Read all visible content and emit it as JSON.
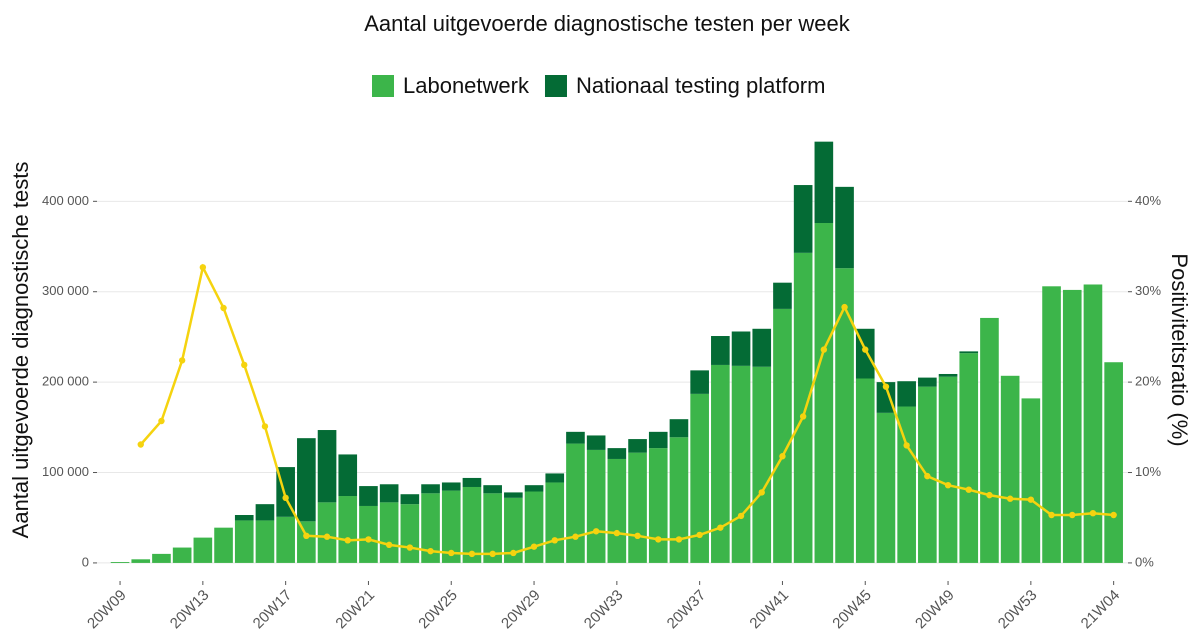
{
  "chart_data": {
    "type": "bar",
    "title": "Aantal uitgevoerde diagnostische testen per week",
    "y_label": "Aantal uitgevoerde diagnostische tests",
    "y2_label": "Positiviteitsratio (%)",
    "stacked": true,
    "grid": true,
    "legend": "top",
    "categories": [
      "20W09",
      null,
      null,
      null,
      "20W13",
      null,
      null,
      null,
      "20W17",
      null,
      null,
      null,
      "20W21",
      null,
      null,
      null,
      "20W25",
      null,
      null,
      null,
      "20W29",
      null,
      null,
      null,
      "20W33",
      null,
      null,
      null,
      "20W37",
      null,
      null,
      null,
      "20W41",
      null,
      null,
      null,
      "20W45",
      null,
      null,
      null,
      "20W49",
      null,
      null,
      null,
      "20W53",
      null,
      null,
      null,
      "21W04"
    ],
    "series": [
      {
        "name": "Labonetwerk",
        "color": "#3cb54a",
        "values": [
          1000,
          4000,
          10000,
          17000,
          28000,
          39000,
          47000,
          47000,
          51000,
          46000,
          67000,
          74000,
          63000,
          67000,
          65000,
          77000,
          80000,
          84000,
          77000,
          72000,
          79000,
          89000,
          132000,
          125000,
          115000,
          122000,
          127000,
          139000,
          187000,
          219000,
          218000,
          217000,
          281000,
          343000,
          376000,
          326000,
          204000,
          166000,
          173000,
          195000,
          206000,
          232000,
          271000,
          207000,
          182000,
          306000,
          302000,
          308000,
          222000
        ]
      },
      {
        "name": "Nationaal testing platform",
        "color": "#046b35",
        "values": [
          0,
          0,
          0,
          0,
          0,
          0,
          6000,
          18000,
          55000,
          92000,
          80000,
          46000,
          22000,
          20000,
          11000,
          10000,
          9000,
          10000,
          9000,
          6000,
          7000,
          10000,
          13000,
          16000,
          12000,
          15000,
          18000,
          20000,
          26000,
          32000,
          38000,
          42000,
          29000,
          75000,
          90000,
          90000,
          55000,
          34000,
          28000,
          10000,
          3000,
          2000,
          0,
          0,
          0,
          0,
          0,
          0,
          0
        ]
      },
      {
        "type": "line",
        "axis": "y2",
        "color": "#f5d30f",
        "values": [
          null,
          13.1,
          15.7,
          22.4,
          32.7,
          28.2,
          21.9,
          15.1,
          7.2,
          3.0,
          2.9,
          2.5,
          2.6,
          2.0,
          1.7,
          1.3,
          1.1,
          1.0,
          1.0,
          1.1,
          1.8,
          2.5,
          2.9,
          3.5,
          3.3,
          3.0,
          2.6,
          2.6,
          3.1,
          3.9,
          5.2,
          7.8,
          11.8,
          16.2,
          23.6,
          28.3,
          23.6,
          19.5,
          13.0,
          9.6,
          8.6,
          8.1,
          7.5,
          7.1,
          7.0,
          5.3,
          5.3,
          5.5,
          5.3
        ]
      }
    ],
    "ylim": [
      -20000,
      480000
    ],
    "yticks": [
      0,
      {
        "value": 100000,
        "label": "100 000"
      },
      {
        "value": 200000,
        "label": "200 000"
      },
      {
        "value": 300000,
        "label": "300 000"
      },
      {
        "value": 400000,
        "label": "400 000"
      }
    ],
    "y2lim": [
      -2,
      48
    ],
    "y2ticks": [
      {
        "value": 0,
        "label": "0%"
      },
      {
        "value": 10,
        "label": "10%"
      },
      {
        "value": 20,
        "label": "20%"
      },
      {
        "value": 30,
        "label": "30%"
      },
      {
        "value": 40,
        "label": "40%"
      }
    ]
  }
}
